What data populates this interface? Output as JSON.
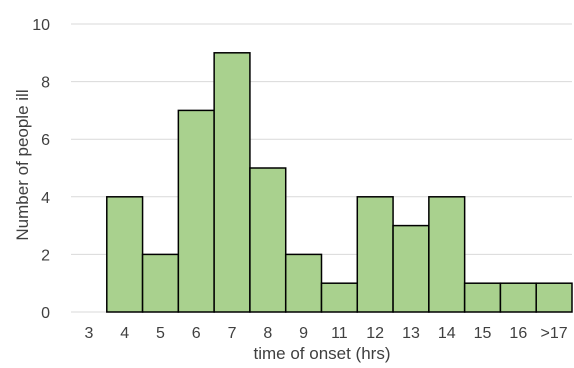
{
  "chart_data": {
    "type": "bar",
    "title": "",
    "xlabel": "time of onset (hrs)",
    "ylabel": "Number of people ill",
    "categories": [
      "3",
      "4",
      "5",
      "6",
      "7",
      "8",
      "9",
      "11",
      "12",
      "13",
      "14",
      "15",
      "16",
      ">17"
    ],
    "values": [
      0,
      4,
      2,
      7,
      9,
      5,
      2,
      1,
      4,
      3,
      4,
      1,
      1,
      1
    ],
    "ylim": [
      0,
      10
    ],
    "yticks": [
      0,
      2,
      4,
      6,
      8,
      10
    ],
    "grid": true,
    "legend": "none",
    "colors": {
      "bar_fill": "#a9d18e",
      "bar_stroke": "#000000",
      "grid": "#d9d9d9",
      "text": "#404040"
    }
  }
}
